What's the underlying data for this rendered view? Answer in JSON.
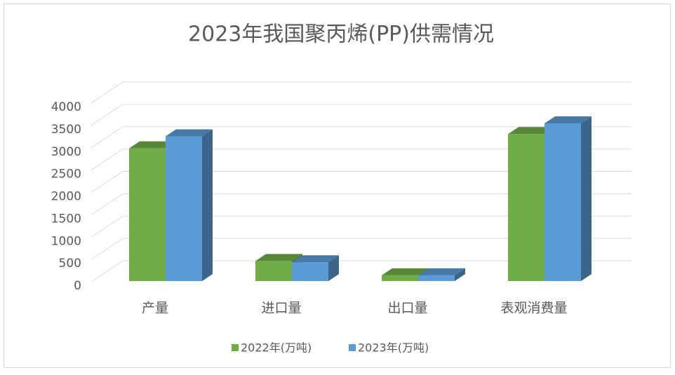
{
  "chart_data": {
    "type": "bar3d",
    "title": "2023年我国聚丙烯(PP)供需情况",
    "categories": [
      "产量",
      "进口量",
      "出口量",
      "表观消费量"
    ],
    "series": [
      {
        "name": "2022年(万吨)",
        "color": "#70ad47",
        "values": [
          2970,
          450,
          130,
          3290
        ]
      },
      {
        "name": "2023年(万吨)",
        "color": "#5b9bd5",
        "values": [
          3240,
          420,
          130,
          3530
        ]
      }
    ],
    "ylim": [
      0,
      4000
    ],
    "yticks": [
      0,
      500,
      1000,
      1500,
      2000,
      2500,
      3000,
      3500,
      4000
    ],
    "grid": true,
    "legend": "bottom"
  }
}
